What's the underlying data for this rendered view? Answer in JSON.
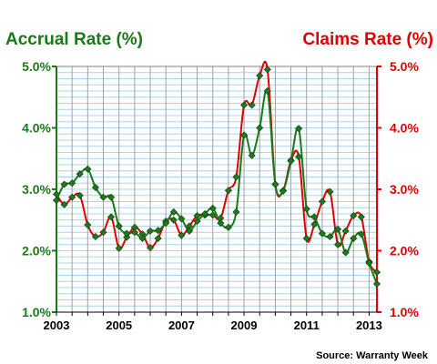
{
  "chart_data": {
    "type": "line",
    "title_left": "Accrual Rate (%)",
    "title_right": "Claims Rate (%)",
    "source": "Source: Warranty Week",
    "xlim": [
      2003,
      2013.25
    ],
    "ylim": [
      1.0,
      5.0
    ],
    "x_ticks": [
      "2003",
      "2005",
      "2007",
      "2009",
      "2011",
      "2013"
    ],
    "y_ticks_left": [
      "1.0%",
      "2.0%",
      "3.0%",
      "4.0%",
      "5.0%"
    ],
    "y_ticks_right": [
      "1.0%",
      "2.0%",
      "3.0%",
      "4.0%",
      "5.0%"
    ],
    "grid": true,
    "colors": {
      "accrual": "#1a7a1a",
      "claims": "#e00000"
    },
    "series": [
      {
        "name": "Accrual Rate (%)",
        "x": [
          2003.0,
          2003.25,
          2003.5,
          2003.75,
          2004.0,
          2004.25,
          2004.5,
          2004.75,
          2005.0,
          2005.25,
          2005.5,
          2005.75,
          2006.0,
          2006.25,
          2006.5,
          2006.75,
          2007.0,
          2007.25,
          2007.5,
          2007.75,
          2008.0,
          2008.25,
          2008.5,
          2008.75,
          2009.0,
          2009.25,
          2009.5,
          2009.75,
          2010.0,
          2010.25,
          2010.5,
          2010.75,
          2011.0,
          2011.25,
          2011.5,
          2011.75,
          2012.0,
          2012.25,
          2012.5,
          2012.75,
          2013.0,
          2013.25
        ],
        "values": [
          2.82,
          3.08,
          3.1,
          3.25,
          3.33,
          3.03,
          2.87,
          2.87,
          2.4,
          2.28,
          2.3,
          2.2,
          2.32,
          2.33,
          2.45,
          2.63,
          2.52,
          2.32,
          2.48,
          2.6,
          2.69,
          2.45,
          2.38,
          2.63,
          3.88,
          3.55,
          4.0,
          4.6,
          3.08,
          2.97,
          3.46,
          3.99,
          2.68,
          2.55,
          2.28,
          2.23,
          2.35,
          1.97,
          2.2,
          2.27,
          1.8,
          1.46
        ]
      },
      {
        "name": "Claims Rate (%)",
        "x": [
          2003.0,
          2003.25,
          2003.5,
          2003.75,
          2004.0,
          2004.25,
          2004.5,
          2004.75,
          2005.0,
          2005.25,
          2005.5,
          2005.75,
          2006.0,
          2006.25,
          2006.5,
          2006.75,
          2007.0,
          2007.25,
          2007.5,
          2007.75,
          2008.0,
          2008.25,
          2008.5,
          2008.75,
          2009.0,
          2009.25,
          2009.5,
          2009.75,
          2010.0,
          2010.25,
          2010.5,
          2010.75,
          2011.0,
          2011.25,
          2011.5,
          2011.75,
          2012.0,
          2012.25,
          2012.5,
          2012.75,
          2013.0,
          2013.25
        ],
        "values": [
          2.92,
          2.75,
          2.87,
          2.9,
          2.42,
          2.23,
          2.3,
          2.55,
          2.04,
          2.22,
          2.38,
          2.27,
          2.05,
          2.2,
          2.48,
          2.5,
          2.25,
          2.4,
          2.57,
          2.58,
          2.58,
          2.53,
          2.98,
          3.2,
          4.37,
          4.37,
          4.85,
          4.95,
          3.08,
          2.98,
          3.47,
          3.53,
          2.2,
          2.43,
          2.8,
          2.96,
          2.1,
          2.32,
          2.57,
          2.55,
          1.82,
          1.65
        ]
      }
    ]
  }
}
